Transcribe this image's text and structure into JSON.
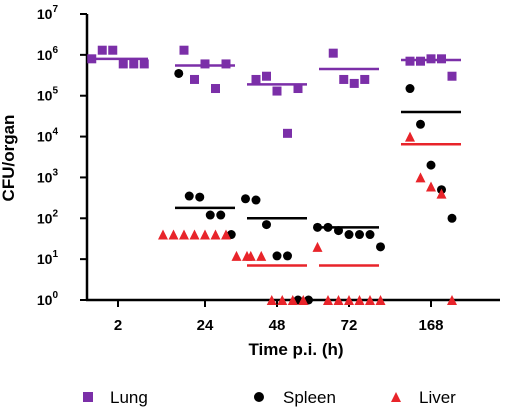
{
  "chart_data": {
    "type": "scatter",
    "xlabel": "Time p.i. (h)",
    "ylabel": "CFU/organ",
    "yscale": "log",
    "ylim": [
      1,
      10000000
    ],
    "y_tick_labels": [
      {
        "base": "10",
        "exp": "0"
      },
      {
        "base": "10",
        "exp": "1"
      },
      {
        "base": "10",
        "exp": "2"
      },
      {
        "base": "10",
        "exp": "3"
      },
      {
        "base": "10",
        "exp": "4"
      },
      {
        "base": "10",
        "exp": "5"
      },
      {
        "base": "10",
        "exp": "6"
      },
      {
        "base": "10",
        "exp": "7"
      }
    ],
    "categories": [
      "2",
      "24",
      "48",
      "72",
      "168"
    ],
    "series": [
      {
        "name": "Lung",
        "marker": "square",
        "color": "#7B2FA8",
        "points": [
          [
            800000,
            1300000,
            1300000,
            600000,
            600000,
            600000
          ],
          [
            1300000,
            250000,
            600000,
            150000,
            600000
          ],
          [
            250000,
            300000,
            130000,
            12000,
            150000
          ],
          [
            1100000,
            250000,
            200000,
            250000
          ],
          [
            700000,
            700000,
            800000,
            800000,
            300000
          ]
        ],
        "means": [
          800000,
          550000,
          190000,
          450000,
          750000
        ]
      },
      {
        "name": "Spleen",
        "marker": "circle",
        "color": "#000000",
        "points": [
          [],
          [
            350000,
            350,
            330,
            120,
            120,
            40
          ],
          [
            300,
            280,
            70,
            12,
            12,
            1,
            1
          ],
          [
            60,
            60,
            50,
            40,
            40,
            40,
            20
          ],
          [
            150000,
            20000,
            2000,
            500,
            100
          ]
        ],
        "means": [
          null,
          180,
          100,
          60,
          40000
        ]
      },
      {
        "name": "Liver",
        "marker": "triangle",
        "color": "#E8242A",
        "points": [
          [],
          [
            40,
            40,
            40,
            40,
            40,
            40,
            40,
            12,
            12
          ],
          [
            12,
            12,
            1,
            1,
            1,
            1
          ],
          [
            20,
            1,
            1,
            1,
            1,
            1,
            1
          ],
          [
            10000,
            1000,
            600,
            400,
            1
          ]
        ],
        "means": [
          null,
          null,
          7,
          7,
          6500
        ]
      }
    ],
    "legend": {
      "placement": "bottom",
      "entries": [
        "Lung",
        "Spleen",
        "Liver"
      ]
    }
  }
}
